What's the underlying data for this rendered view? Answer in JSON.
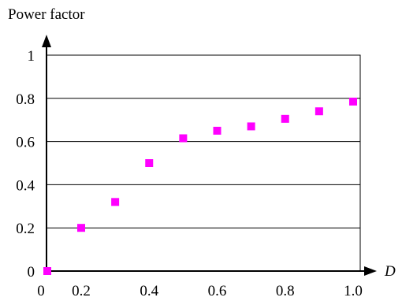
{
  "chart_data": {
    "type": "scatter",
    "ylabel": "Power factor",
    "xlabel": "D",
    "xlim": [
      0,
      1.0
    ],
    "ylim": [
      0,
      1.0
    ],
    "x_ticks": [
      0,
      0.2,
      0.4,
      0.6,
      0.8,
      1.0
    ],
    "x_tick_labels": [
      "0",
      "0.2",
      "0.4",
      "0.6",
      "0.8",
      "1.0"
    ],
    "y_ticks": [
      0,
      0.2,
      0.4,
      0.6,
      0.8,
      1
    ],
    "y_tick_labels": [
      "0",
      "0.2",
      "0.4",
      "0.6",
      "0.8",
      "1"
    ],
    "grid": "horizontal",
    "marker": "square",
    "marker_color": "#ff00ff",
    "series": [
      {
        "x": [
          0.0,
          0.2,
          0.3,
          0.4,
          0.5,
          0.6,
          0.7,
          0.8,
          0.9,
          1.0
        ],
        "y": [
          0.0,
          0.2,
          0.32,
          0.5,
          0.615,
          0.65,
          0.67,
          0.705,
          0.74,
          0.785
        ]
      }
    ]
  }
}
